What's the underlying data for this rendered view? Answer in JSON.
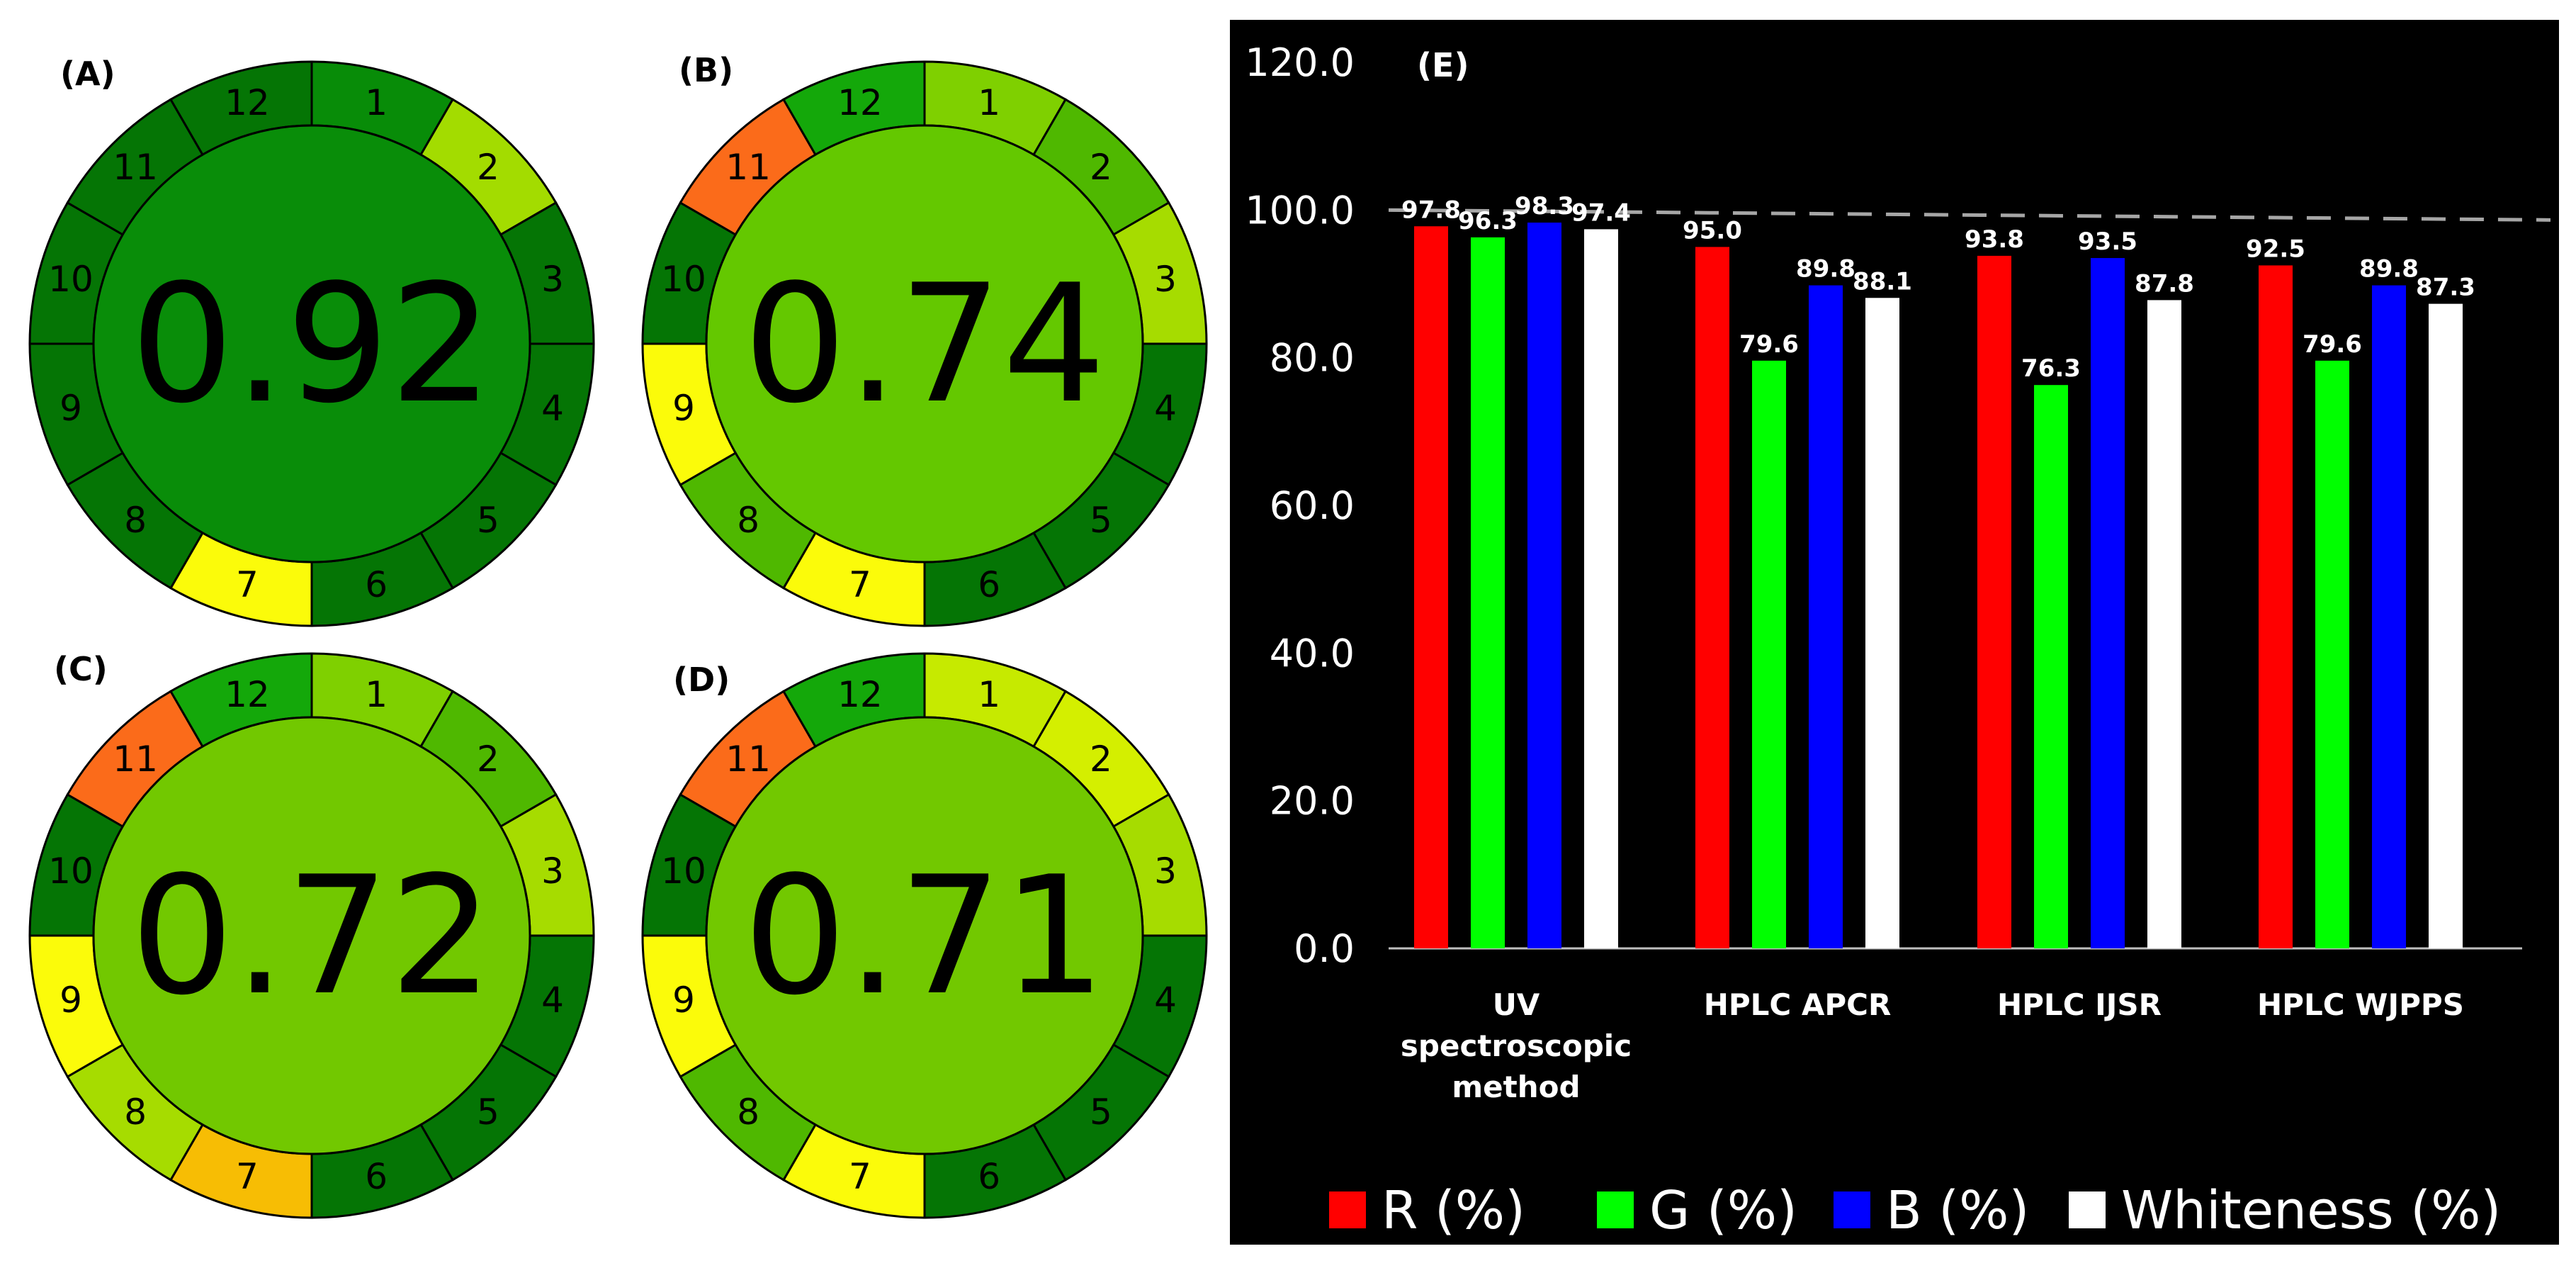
{
  "pies": [
    {
      "label": "(A)",
      "score": "0.92",
      "center_color": "#098d09",
      "segment_labels": [
        "1",
        "2",
        "3",
        "4",
        "5",
        "6",
        "7",
        "8",
        "9",
        "10",
        "11",
        "12"
      ],
      "segment_colors": [
        "#088c08",
        "#a3dc00",
        "#057505",
        "#057505",
        "#057505",
        "#057505",
        "#fbfb0a",
        "#057505",
        "#057505",
        "#057505",
        "#057505",
        "#057505"
      ]
    },
    {
      "label": "(B)",
      "score": "0.74",
      "center_color": "#64c800",
      "segment_labels": [
        "1",
        "2",
        "3",
        "4",
        "5",
        "6",
        "7",
        "8",
        "9",
        "10",
        "11",
        "12"
      ],
      "segment_colors": [
        "#7fd000",
        "#4fb800",
        "#a6dc00",
        "#057505",
        "#057505",
        "#057505",
        "#fbfb0a",
        "#4fb800",
        "#fbfb0a",
        "#057505",
        "#fb6b1a",
        "#14a80a"
      ]
    },
    {
      "label": "(C)",
      "score": "0.72",
      "center_color": "#72c800",
      "segment_labels": [
        "1",
        "2",
        "3",
        "4",
        "5",
        "6",
        "7",
        "8",
        "9",
        "10",
        "11",
        "12"
      ],
      "segment_colors": [
        "#7fd000",
        "#4fb800",
        "#a6dc00",
        "#057505",
        "#057505",
        "#057505",
        "#f7bd04",
        "#a6dc00",
        "#fbfb0a",
        "#057505",
        "#fb6b1a",
        "#14a80a"
      ]
    },
    {
      "label": "(D)",
      "score": "0.71",
      "center_color": "#72c800",
      "segment_labels": [
        "1",
        "2",
        "3",
        "4",
        "5",
        "6",
        "7",
        "8",
        "9",
        "10",
        "11",
        "12"
      ],
      "segment_colors": [
        "#c6ea00",
        "#d4ef00",
        "#a6dc00",
        "#057505",
        "#057505",
        "#057505",
        "#fbfb0a",
        "#4fb800",
        "#fbfb0a",
        "#057505",
        "#fb6b1a",
        "#14a80a"
      ]
    }
  ],
  "chart_data": {
    "type": "bar",
    "title": "(E)",
    "categories": [
      [
        "UV",
        "spectroscopic",
        "method"
      ],
      [
        "HPLC APCR"
      ],
      [
        "HPLC IJSR"
      ],
      [
        "HPLC WJPPS"
      ]
    ],
    "series": [
      {
        "name": "R (%)",
        "color": "#ff0000",
        "values": [
          97.8,
          95.0,
          93.8,
          92.5
        ]
      },
      {
        "name": "G (%)",
        "color": "#00ff00",
        "values": [
          96.3,
          79.6,
          76.3,
          79.6
        ]
      },
      {
        "name": "B (%)",
        "color": "#0000ff",
        "values": [
          98.3,
          89.8,
          93.5,
          89.8
        ]
      },
      {
        "name": "Whiteness (%)",
        "color": "#ffffff",
        "values": [
          97.4,
          88.1,
          87.8,
          87.3
        ]
      }
    ],
    "ylim": [
      0,
      120
    ],
    "yticks": [
      "0.0",
      "20.0",
      "40.0",
      "60.0",
      "80.0",
      "100.0",
      "120.0"
    ],
    "reference_line": 100,
    "legend": "bottom",
    "background": "#000000"
  }
}
